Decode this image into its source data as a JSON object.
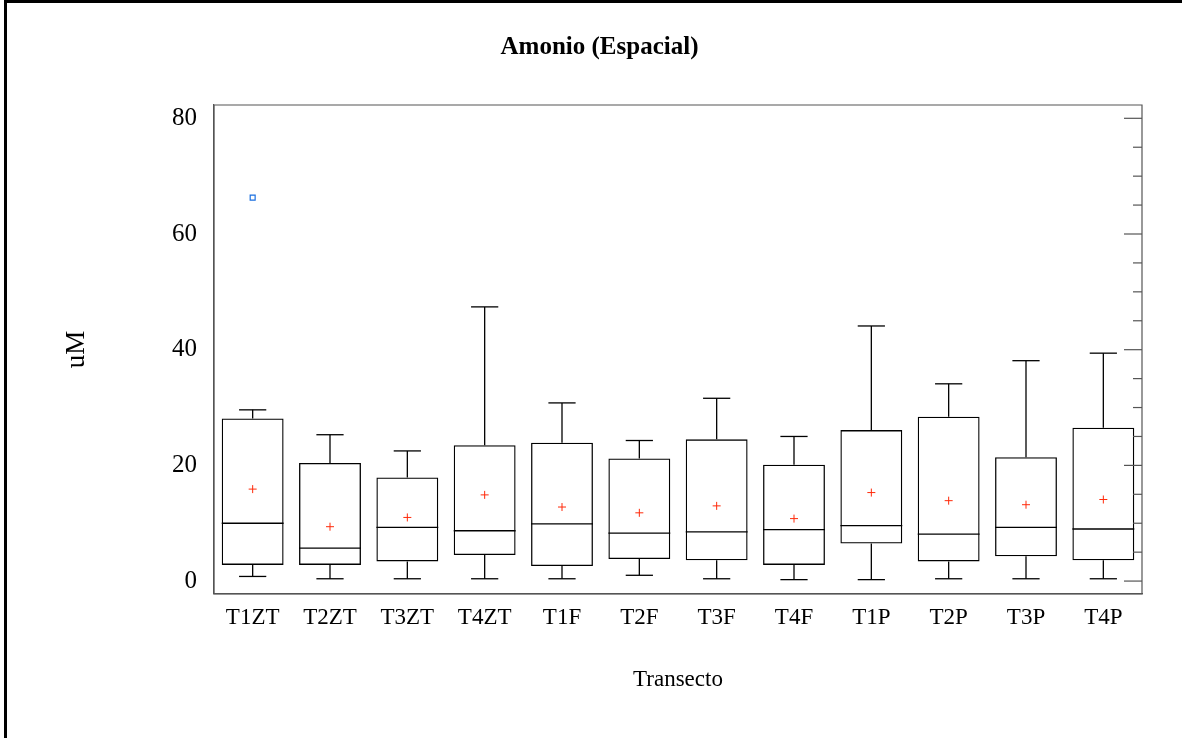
{
  "chart_data": {
    "type": "box",
    "title": "Amonio (Espacial)",
    "xlabel": "Transecto",
    "ylabel": "uM",
    "categories": [
      "T1ZT",
      "T2ZT",
      "T3ZT",
      "T4ZT",
      "T1F",
      "T2F",
      "T3F",
      "T4F",
      "T1P",
      "T2P",
      "T3P",
      "T4P"
    ],
    "boxes": [
      {
        "low": 0.8,
        "q1": 2.8,
        "median": 10.0,
        "q3": 28.1,
        "high": 29.6,
        "mean": 15.9,
        "outliers": [
          66.3
        ]
      },
      {
        "low": 0.4,
        "q1": 2.8,
        "median": 5.7,
        "q3": 20.4,
        "high": 25.3,
        "mean": 9.4
      },
      {
        "low": 0.4,
        "q1": 3.4,
        "median": 9.3,
        "q3": 17.9,
        "high": 22.5,
        "mean": 11.0
      },
      {
        "low": 0.4,
        "q1": 4.5,
        "median": 8.7,
        "q3": 23.5,
        "high": 47.4,
        "mean": 14.9
      },
      {
        "low": 0.4,
        "q1": 2.6,
        "median": 9.9,
        "q3": 23.9,
        "high": 30.8,
        "mean": 12.8
      },
      {
        "low": 1.0,
        "q1": 3.8,
        "median": 8.3,
        "q3": 21.2,
        "high": 24.3,
        "mean": 11.8
      },
      {
        "low": 0.4,
        "q1": 3.6,
        "median": 8.5,
        "q3": 24.5,
        "high": 31.6,
        "mean": 13.0
      },
      {
        "low": 0.25,
        "q1": 2.8,
        "median": 8.9,
        "q3": 20.1,
        "high": 25.0,
        "mean": 10.8
      },
      {
        "low": 0.25,
        "q1": 6.5,
        "median": 9.6,
        "q3": 26.1,
        "high": 44.1,
        "mean": 15.3
      },
      {
        "low": 0.4,
        "q1": 3.4,
        "median": 8.1,
        "q3": 28.4,
        "high": 34.1,
        "mean": 13.9
      },
      {
        "low": 0.4,
        "q1": 4.3,
        "median": 9.3,
        "q3": 21.4,
        "high": 38.1,
        "mean": 13.2
      },
      {
        "low": 0.4,
        "q1": 3.6,
        "median": 9.0,
        "q3": 26.5,
        "high": 39.4,
        "mean": 14.1
      }
    ],
    "ylim": [
      -2.2,
      82.3
    ],
    "yticks": [
      0,
      {
        "value": 5,
        "label": null
      },
      {
        "value": 10,
        "label": null
      },
      {
        "value": 15,
        "label": null
      },
      20,
      {
        "value": 25,
        "label": null
      },
      {
        "value": 30,
        "label": null
      },
      {
        "value": 35,
        "label": null
      },
      40,
      {
        "value": 45,
        "label": null
      },
      {
        "value": 50,
        "label": null
      },
      {
        "value": 55,
        "label": null
      },
      60,
      {
        "value": 65,
        "label": null
      },
      {
        "value": 70,
        "label": null
      },
      {
        "value": 75,
        "label": null
      },
      80
    ]
  }
}
